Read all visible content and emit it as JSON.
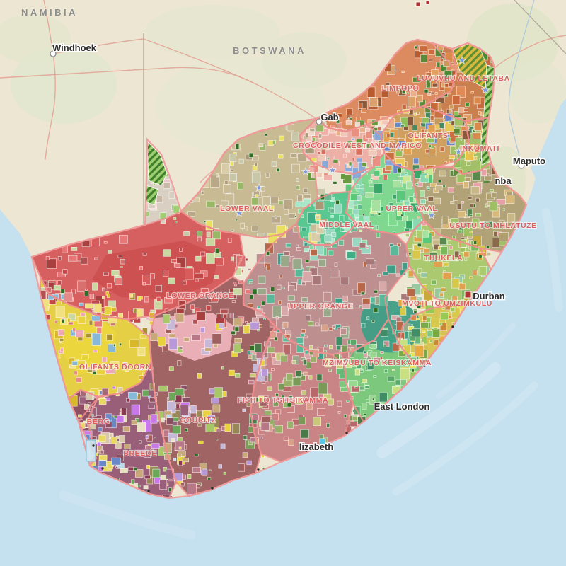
{
  "countries": [
    {
      "name": "NAMIBIA"
    },
    {
      "name": "BOTSWANA"
    }
  ],
  "cities": [
    {
      "name": "Windhoek"
    },
    {
      "name": "Gab"
    },
    {
      "name": "Maputo"
    },
    {
      "name": "nba"
    },
    {
      "name": "Durban"
    },
    {
      "name": "East London"
    },
    {
      "name": "lizabeth"
    }
  ],
  "wma": [
    {
      "name": "LIMPOPO"
    },
    {
      "name": "LUVUVHU AND LETABA"
    },
    {
      "name": "CROCODILE WEST AND MARICO"
    },
    {
      "name": "OLIFANTS"
    },
    {
      "name": "INKOMATI"
    },
    {
      "name": "LOWER VAAL"
    },
    {
      "name": "MIDDLE VAAL"
    },
    {
      "name": "UPPER VAAL"
    },
    {
      "name": "USUTU TO MHLATUZE"
    },
    {
      "name": "THUKELA"
    },
    {
      "name": "LOWER ORANGE"
    },
    {
      "name": "UPPER ORANGE"
    },
    {
      "name": "MVOTI TO UMZIMKULU"
    },
    {
      "name": "MZIMVUBU TO KEISKAMMA"
    },
    {
      "name": "FISH TO TSITSIKAMMA"
    },
    {
      "name": "OLIFANTS DOORN"
    },
    {
      "name": "GOURITZ"
    },
    {
      "name": "BERG"
    },
    {
      "name": "BREEDE"
    }
  ],
  "icons": {
    "star": "★"
  },
  "colors": {
    "ocean": "#c5e0ef",
    "land": "#ece6d2",
    "wma_label": "#dc5f5f",
    "wma_border": "#ef8e8e",
    "country_label": "#8e8e8e",
    "city_label": "#2d2d2d",
    "city_marker": "#b03434"
  }
}
